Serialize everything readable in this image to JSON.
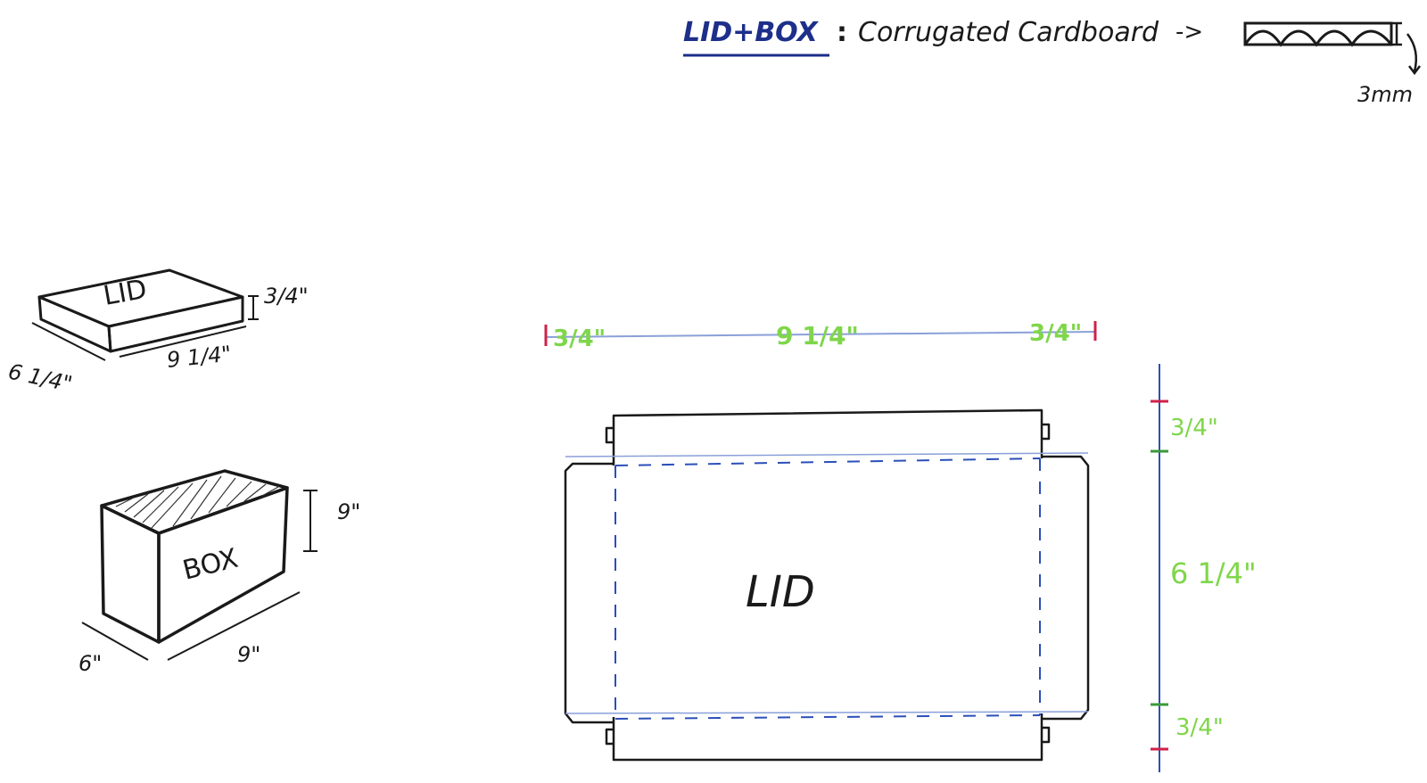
{
  "header": {
    "title": "LID+BOX",
    "colon": ":",
    "material": "Corrugated Cardboard",
    "arrow": "->",
    "thickness": "3mm"
  },
  "lid_sketch": {
    "label": "LID",
    "height": "3/4\"",
    "width": "6 1/4\"",
    "length": "9 1/4\""
  },
  "box_sketch": {
    "label": "BOX",
    "height": "9\"",
    "width": "6\"",
    "length": "9\""
  },
  "net": {
    "label": "LID",
    "top_left": "3/4\"",
    "top_middle": "9 1/4\"",
    "top_right": "3/4\"",
    "right_top": "3/4\"",
    "right_middle": "6 1/4\"",
    "right_bottom": "3/4\""
  },
  "colors": {
    "ink": "#1a1a1a",
    "blue": "#2b4fb8",
    "green": "#7fd64a",
    "red": "#d0204a"
  }
}
